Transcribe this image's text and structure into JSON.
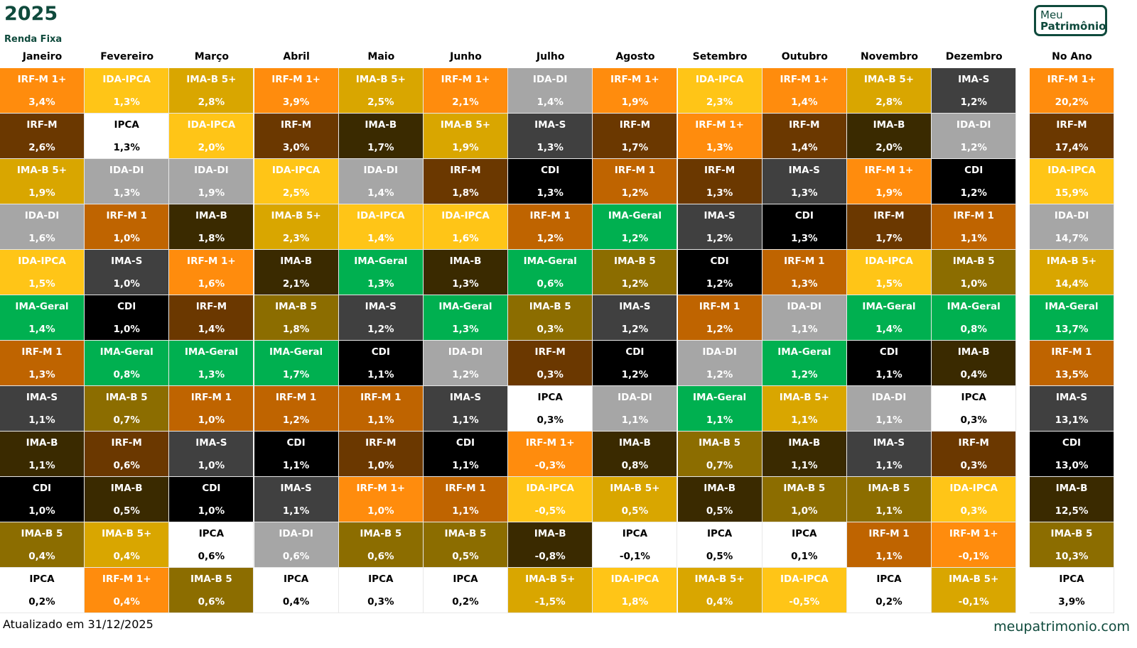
{
  "title": "2025",
  "subtitle": "Renda Fixa",
  "logo_text": "Meu Patrimônio",
  "footer": {
    "updated": "Atualizado em 31/12/2025",
    "site": "meupatrimonio.com"
  },
  "colors": {
    "IRF-M 1+": "#FF8C0D",
    "IDA-IPCA": "#FFC517",
    "IMA-B 5+": "#D9A600",
    "IDA-DI": "#A6A6A6",
    "IMA-S": "#404040",
    "IRF-M": "#6B3800",
    "IPCA": "#FFFFFF",
    "IMA-B": "#3A2A00",
    "CDI": "#000000",
    "IRF-M 1": "#BF6400",
    "IMA-Geral": "#00B050",
    "IMA-B 5": "#8C6D00"
  },
  "chart_data": {
    "type": "table",
    "title": "2025 - Renda Fixa",
    "columns": [
      {
        "label": "Janeiro",
        "entries": [
          [
            "IRF-M 1+",
            "3,4%"
          ],
          [
            "IRF-M",
            "2,6%"
          ],
          [
            "IMA-B 5+",
            "1,9%"
          ],
          [
            "IDA-DI",
            "1,6%"
          ],
          [
            "IDA-IPCA",
            "1,5%"
          ],
          [
            "IMA-Geral",
            "1,4%"
          ],
          [
            "IRF-M 1",
            "1,3%"
          ],
          [
            "IMA-S",
            "1,1%"
          ],
          [
            "IMA-B",
            "1,1%"
          ],
          [
            "CDI",
            "1,0%"
          ],
          [
            "IMA-B 5",
            "0,4%"
          ],
          [
            "IPCA",
            "0,2%"
          ]
        ]
      },
      {
        "label": "Fevereiro",
        "entries": [
          [
            "IDA-IPCA",
            "1,3%"
          ],
          [
            "IPCA",
            "1,3%"
          ],
          [
            "IDA-DI",
            "1,3%"
          ],
          [
            "IRF-M 1",
            "1,0%"
          ],
          [
            "IMA-S",
            "1,0%"
          ],
          [
            "CDI",
            "1,0%"
          ],
          [
            "IMA-Geral",
            "0,8%"
          ],
          [
            "IMA-B 5",
            "0,7%"
          ],
          [
            "IRF-M",
            "0,6%"
          ],
          [
            "IMA-B",
            "0,5%"
          ],
          [
            "IMA-B 5+",
            "0,4%"
          ],
          [
            "IRF-M 1+",
            "0,4%"
          ]
        ]
      },
      {
        "label": "Março",
        "entries": [
          [
            "IMA-B 5+",
            "2,8%"
          ],
          [
            "IDA-IPCA",
            "2,0%"
          ],
          [
            "IDA-DI",
            "1,9%"
          ],
          [
            "IMA-B",
            "1,8%"
          ],
          [
            "IRF-M 1+",
            "1,6%"
          ],
          [
            "IRF-M",
            "1,4%"
          ],
          [
            "IMA-Geral",
            "1,3%"
          ],
          [
            "IRF-M 1",
            "1,0%"
          ],
          [
            "IMA-S",
            "1,0%"
          ],
          [
            "CDI",
            "1,0%"
          ],
          [
            "IPCA",
            "0,6%"
          ],
          [
            "IMA-B 5",
            "0,6%"
          ]
        ]
      },
      {
        "label": "Abril",
        "entries": [
          [
            "IRF-M 1+",
            "3,9%"
          ],
          [
            "IRF-M",
            "3,0%"
          ],
          [
            "IDA-IPCA",
            "2,5%"
          ],
          [
            "IMA-B 5+",
            "2,3%"
          ],
          [
            "IMA-B",
            "2,1%"
          ],
          [
            "IMA-B 5",
            "1,8%"
          ],
          [
            "IMA-Geral",
            "1,7%"
          ],
          [
            "IRF-M 1",
            "1,2%"
          ],
          [
            "CDI",
            "1,1%"
          ],
          [
            "IMA-S",
            "1,1%"
          ],
          [
            "IDA-DI",
            "0,6%"
          ],
          [
            "IPCA",
            "0,4%"
          ]
        ]
      },
      {
        "label": "Maio",
        "entries": [
          [
            "IMA-B 5+",
            "2,5%"
          ],
          [
            "IMA-B",
            "1,7%"
          ],
          [
            "IDA-DI",
            "1,4%"
          ],
          [
            "IDA-IPCA",
            "1,4%"
          ],
          [
            "IMA-Geral",
            "1,3%"
          ],
          [
            "IMA-S",
            "1,2%"
          ],
          [
            "CDI",
            "1,1%"
          ],
          [
            "IRF-M 1",
            "1,1%"
          ],
          [
            "IRF-M",
            "1,0%"
          ],
          [
            "IRF-M 1+",
            "1,0%"
          ],
          [
            "IMA-B 5",
            "0,6%"
          ],
          [
            "IPCA",
            "0,3%"
          ]
        ]
      },
      {
        "label": "Junho",
        "entries": [
          [
            "IRF-M 1+",
            "2,1%"
          ],
          [
            "IMA-B 5+",
            "1,9%"
          ],
          [
            "IRF-M",
            "1,8%"
          ],
          [
            "IDA-IPCA",
            "1,6%"
          ],
          [
            "IMA-B",
            "1,3%"
          ],
          [
            "IMA-Geral",
            "1,3%"
          ],
          [
            "IDA-DI",
            "1,2%"
          ],
          [
            "IMA-S",
            "1,1%"
          ],
          [
            "CDI",
            "1,1%"
          ],
          [
            "IRF-M 1",
            "1,1%"
          ],
          [
            "IMA-B 5",
            "0,5%"
          ],
          [
            "IPCA",
            "0,2%"
          ]
        ]
      },
      {
        "label": "Julho",
        "entries": [
          [
            "IDA-DI",
            "1,4%"
          ],
          [
            "IMA-S",
            "1,3%"
          ],
          [
            "CDI",
            "1,3%"
          ],
          [
            "IRF-M 1",
            "1,2%"
          ],
          [
            "IMA-Geral",
            "0,6%"
          ],
          [
            "IMA-B 5",
            "0,3%"
          ],
          [
            "IRF-M",
            "0,3%"
          ],
          [
            "IPCA",
            "0,3%"
          ],
          [
            "IRF-M 1+",
            "-0,3%"
          ],
          [
            "IDA-IPCA",
            "-0,5%"
          ],
          [
            "IMA-B",
            "-0,8%"
          ],
          [
            "IMA-B 5+",
            "-1,5%"
          ]
        ]
      },
      {
        "label": "Agosto",
        "entries": [
          [
            "IRF-M 1+",
            "1,9%"
          ],
          [
            "IRF-M",
            "1,7%"
          ],
          [
            "IRF-M 1",
            "1,2%"
          ],
          [
            "IMA-Geral",
            "1,2%"
          ],
          [
            "IMA-B 5",
            "1,2%"
          ],
          [
            "IMA-S",
            "1,2%"
          ],
          [
            "CDI",
            "1,2%"
          ],
          [
            "IDA-DI",
            "1,1%"
          ],
          [
            "IMA-B",
            "0,8%"
          ],
          [
            "IMA-B 5+",
            "0,5%"
          ],
          [
            "IPCA",
            "-0,1%"
          ],
          [
            "IDA-IPCA",
            "1,8%"
          ]
        ]
      },
      {
        "label": "Setembro",
        "entries": [
          [
            "IDA-IPCA",
            "2,3%"
          ],
          [
            "IRF-M 1+",
            "1,3%"
          ],
          [
            "IRF-M",
            "1,3%"
          ],
          [
            "IMA-S",
            "1,2%"
          ],
          [
            "CDI",
            "1,2%"
          ],
          [
            "IRF-M 1",
            "1,2%"
          ],
          [
            "IDA-DI",
            "1,2%"
          ],
          [
            "IMA-Geral",
            "1,1%"
          ],
          [
            "IMA-B 5",
            "0,7%"
          ],
          [
            "IMA-B",
            "0,5%"
          ],
          [
            "IPCA",
            "0,5%"
          ],
          [
            "IMA-B 5+",
            "0,4%"
          ]
        ]
      },
      {
        "label": "Outubro",
        "entries": [
          [
            "IRF-M 1+",
            "1,4%"
          ],
          [
            "IRF-M",
            "1,4%"
          ],
          [
            "IMA-S",
            "1,3%"
          ],
          [
            "CDI",
            "1,3%"
          ],
          [
            "IRF-M 1",
            "1,3%"
          ],
          [
            "IDA-DI",
            "1,1%"
          ],
          [
            "IMA-Geral",
            "1,2%"
          ],
          [
            "IMA-B 5+",
            "1,1%"
          ],
          [
            "IMA-B",
            "1,1%"
          ],
          [
            "IMA-B 5",
            "1,0%"
          ],
          [
            "IPCA",
            "0,1%"
          ],
          [
            "IDA-IPCA",
            "-0,5%"
          ]
        ]
      },
      {
        "label": "Novembro",
        "entries": [
          [
            "IMA-B 5+",
            "2,8%"
          ],
          [
            "IMA-B",
            "2,0%"
          ],
          [
            "IRF-M 1+",
            "1,9%"
          ],
          [
            "IRF-M",
            "1,7%"
          ],
          [
            "IDA-IPCA",
            "1,5%"
          ],
          [
            "IMA-Geral",
            "1,4%"
          ],
          [
            "CDI",
            "1,1%"
          ],
          [
            "IDA-DI",
            "1,1%"
          ],
          [
            "IMA-S",
            "1,1%"
          ],
          [
            "IMA-B 5",
            "1,1%"
          ],
          [
            "IRF-M 1",
            "1,1%"
          ],
          [
            "IPCA",
            "0,2%"
          ]
        ]
      },
      {
        "label": "Dezembro",
        "entries": [
          [
            "IMA-S",
            "1,2%"
          ],
          [
            "IDA-DI",
            "1,2%"
          ],
          [
            "CDI",
            "1,2%"
          ],
          [
            "IRF-M 1",
            "1,1%"
          ],
          [
            "IMA-B 5",
            "1,0%"
          ],
          [
            "IMA-Geral",
            "0,8%"
          ],
          [
            "IMA-B",
            "0,4%"
          ],
          [
            "IPCA",
            "0,3%"
          ],
          [
            "IRF-M",
            "0,3%"
          ],
          [
            "IDA-IPCA",
            "0,3%"
          ],
          [
            "IRF-M 1+",
            "-0,1%"
          ],
          [
            "IMA-B 5+",
            "-0,1%"
          ]
        ]
      },
      {
        "label": "No Ano",
        "entries": [
          [
            "IRF-M 1+",
            "20,2%"
          ],
          [
            "IRF-M",
            "17,4%"
          ],
          [
            "IDA-IPCA",
            "15,9%"
          ],
          [
            "IDA-DI",
            "14,7%"
          ],
          [
            "IMA-B 5+",
            "14,4%"
          ],
          [
            "IMA-Geral",
            "13,7%"
          ],
          [
            "IRF-M 1",
            "13,5%"
          ],
          [
            "IMA-S",
            "13,1%"
          ],
          [
            "CDI",
            "13,0%"
          ],
          [
            "IMA-B",
            "12,5%"
          ],
          [
            "IMA-B 5",
            "10,3%"
          ],
          [
            "IPCA",
            "3,9%"
          ]
        ]
      }
    ]
  }
}
